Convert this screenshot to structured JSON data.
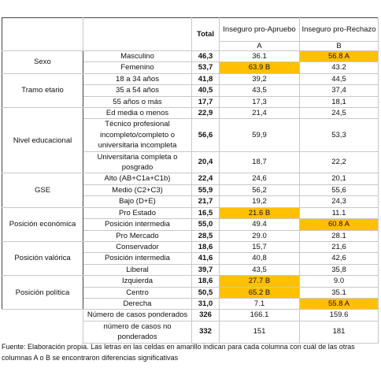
{
  "table": {
    "header": {
      "total": "Total",
      "col_a": "Inseguro pro-Apruebo",
      "col_b": "Inseguro pro-Rechazo",
      "letter_a": "A",
      "letter_b": "B"
    },
    "highlight_color": "#ffc000",
    "groups": [
      {
        "label": "Sexo",
        "rows": [
          {
            "label": "Masculino",
            "total": "46,3",
            "a": "36.1",
            "b": "56.8 A",
            "highlight": "b"
          },
          {
            "label": "Femenino",
            "total": "53,7",
            "a": "63.9 B",
            "b": "43.2",
            "highlight": "a"
          }
        ]
      },
      {
        "label": "Tramo etario",
        "rows": [
          {
            "label": "18 a 34 años",
            "total": "41,8",
            "a": "39,2",
            "b": "44,5"
          },
          {
            "label": "35 a 54 años",
            "total": "40,5",
            "a": "43,5",
            "b": "37,4"
          },
          {
            "label": "55 años o más",
            "total": "17,7",
            "a": "17,3",
            "b": "18,1"
          }
        ]
      },
      {
        "label": "Nivel educacional",
        "rows": [
          {
            "label": "Ed media o menos",
            "total": "22,9",
            "a": "21,4",
            "b": "24,5"
          },
          {
            "label": "Técnico profesional incompleto/completo o universitaria incompleta",
            "total": "56,6",
            "a": "59,9",
            "b": "53,3"
          },
          {
            "label": "Universitaria completa o posgrado",
            "total": "20,4",
            "a": "18,7",
            "b": "22,2"
          }
        ]
      },
      {
        "label": "GSE",
        "rows": [
          {
            "label": "Alto (AB+C1a+C1b)",
            "total": "22,4",
            "a": "24,6",
            "b": "20,1"
          },
          {
            "label": "Medio (C2+C3)",
            "total": "55,9",
            "a": "56,2",
            "b": "55,6"
          },
          {
            "label": "Bajo (D+E)",
            "total": "21,7",
            "a": "19,2",
            "b": "24,3"
          }
        ]
      },
      {
        "label": "Posición económica",
        "rows": [
          {
            "label": "Pro Estado",
            "total": "16,5",
            "a": "21.6 B",
            "b": "11.1",
            "highlight": "a"
          },
          {
            "label": "Posición intermedia",
            "total": "55,0",
            "a": "49.4",
            "b": "60.8 A",
            "highlight": "b"
          },
          {
            "label": "Pro Mercado",
            "total": "28,5",
            "a": "29.0",
            "b": "28.1"
          }
        ]
      },
      {
        "label": "Posición valórica",
        "rows": [
          {
            "label": "Conservador",
            "total": "18,6",
            "a": "15,7",
            "b": "21,6"
          },
          {
            "label": "Posición intermedia",
            "total": "41,6",
            "a": "40,8",
            "b": "42,6"
          },
          {
            "label": "Liberal",
            "total": "39,7",
            "a": "43,5",
            "b": "35,8"
          }
        ]
      },
      {
        "label": "Posición política",
        "rows": [
          {
            "label": "Izquierda",
            "total": "18,6",
            "a": "27.7 B",
            "b": "9.0",
            "highlight": "a"
          },
          {
            "label": "Centro",
            "total": "50,5",
            "a": "65.2 B",
            "b": "35.1",
            "highlight": "a"
          },
          {
            "label": "Derecha",
            "total": "31,0",
            "a": "7.1",
            "b": "55.8 A",
            "highlight": "b"
          }
        ]
      }
    ],
    "footer_rows": [
      {
        "label": "Número de casos ponderados",
        "total": "326",
        "a": "166.1",
        "b": "159.6"
      },
      {
        "label": "número de casos no ponderados",
        "total": "332",
        "a": "151",
        "b": "181"
      }
    ]
  },
  "footnote": "Fuente: Elaboración propia. Las letras en las celdas en amarillo indican para cada columna con cuál de las otras columnas A o B se encontraron diferencias significativas"
}
